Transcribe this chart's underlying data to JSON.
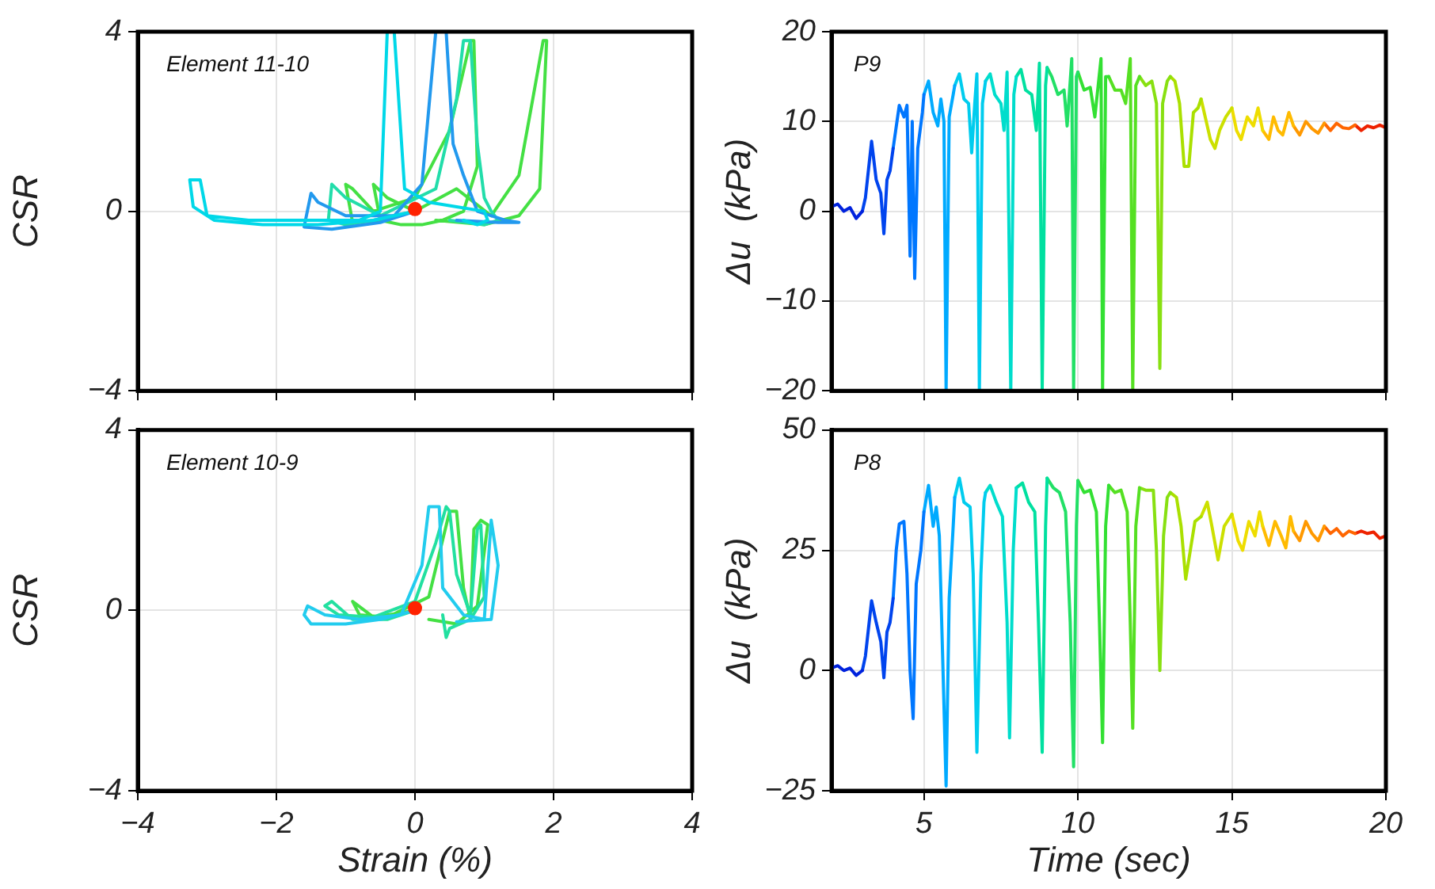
{
  "chart_data": [
    {
      "type": "line",
      "ylabel": "CSR",
      "annotations": [
        "Element 11-10"
      ],
      "xlim": [
        -4,
        4
      ],
      "xticks": [
        -4,
        -2,
        0,
        2,
        4
      ],
      "ylim": [
        -4,
        4
      ],
      "yticks": [
        -4,
        0,
        4
      ],
      "grid": true,
      "tick_labels": "y",
      "legend": false,
      "series": [
        {
          "color": "#00d8e8",
          "x": [
            0,
            -0.6,
            -1.4,
            -2.2,
            -2.9,
            -3.2,
            -3.25,
            -3.1,
            -3.0,
            -2.4,
            -1.6,
            -0.8,
            -0.5,
            -0.4,
            -0.3,
            -0.15,
            0.2,
            0.6,
            1.0,
            1.05,
            0.9,
            0.7
          ],
          "values": [
            0,
            -0.2,
            -0.3,
            -0.3,
            -0.2,
            0.1,
            0.7,
            0.7,
            -0.1,
            -0.2,
            -0.2,
            -0.2,
            0,
            4,
            4,
            0.5,
            0.2,
            0.1,
            0,
            -0.2,
            -0.3,
            -0.2
          ]
        },
        {
          "color": "#2299ee",
          "x": [
            0,
            -0.5,
            -1.2,
            -1.6,
            -1.5,
            -1.4,
            -1.0,
            -0.3,
            0.1,
            0.3,
            0.45,
            0.55,
            0.7,
            0.9,
            1.3,
            1.5,
            1.2,
            0.6
          ],
          "values": [
            0,
            -0.25,
            -0.4,
            -0.35,
            0.4,
            0.2,
            -0.1,
            -0.1,
            0.6,
            4,
            4,
            1.5,
            0.8,
            0,
            -0.2,
            -0.25,
            -0.25,
            -0.2
          ]
        },
        {
          "color": "#22ddaa",
          "x": [
            0,
            -0.6,
            -1.0,
            -1.25,
            -1.2,
            -1.0,
            -0.5,
            0.3,
            0.6,
            0.7,
            0.8,
            0.9,
            1.0,
            1.1,
            1.2,
            1.0,
            0.5
          ],
          "values": [
            0,
            -0.2,
            -0.3,
            -0.2,
            0.6,
            0.3,
            -0.1,
            0.5,
            2.5,
            3.8,
            3.8,
            1.5,
            0.3,
            0,
            -0.2,
            -0.3,
            -0.2
          ]
        },
        {
          "color": "#44e044",
          "x": [
            0,
            -0.5,
            -0.9,
            -1.0,
            -0.9,
            -0.6,
            0,
            0.5,
            0.8,
            0.85,
            0.9,
            0.7,
            0.4,
            0.1,
            -0.2,
            -0.5,
            -0.6,
            -0.4,
            0,
            0.6,
            1.1,
            1.5,
            1.7,
            1.85,
            1.9,
            1.8,
            1.5,
            1.0,
            0.3
          ],
          "values": [
            0,
            -0.2,
            -0.25,
            0.6,
            0.5,
            0,
            0.3,
            1.8,
            3.8,
            3.8,
            1,
            0,
            -0.2,
            -0.3,
            -0.3,
            -0.2,
            0.6,
            0.3,
            0,
            0.5,
            -0.1,
            0.8,
            2.5,
            3.8,
            3.8,
            0.5,
            -0.1,
            -0.3,
            -0.2
          ]
        },
        {
          "type": "scatter",
          "marker": "circle",
          "color": "#ff2200",
          "x": [
            0
          ],
          "values": [
            0.05
          ]
        }
      ]
    },
    {
      "type": "line",
      "ylabel": "Δu  (kPa)",
      "annotations": [
        "P9"
      ],
      "xlim": [
        2,
        20
      ],
      "xticks": [
        5,
        10,
        15,
        20
      ],
      "ylim": [
        -20,
        20
      ],
      "yticks": [
        -20,
        -10,
        0,
        10,
        20
      ],
      "grid": true,
      "tick_labels": "y",
      "legend": false,
      "series": [
        {
          "color": "#0022dd",
          "x": [
            2,
            2.2,
            2.4,
            2.6,
            2.8,
            3.0
          ],
          "values": [
            0.5,
            0.8,
            0,
            0.4,
            -0.8,
            0
          ]
        },
        {
          "color": "#0044ee",
          "x": [
            3.0,
            3.1,
            3.3,
            3.45,
            3.6,
            3.7,
            3.8,
            3.9,
            4.0
          ],
          "values": [
            0,
            1.5,
            7.8,
            3.5,
            2,
            -2.5,
            3.5,
            4.5,
            7
          ]
        },
        {
          "color": "#0077ff",
          "x": [
            4.0,
            4.2,
            4.35,
            4.45,
            4.55,
            4.62,
            4.7,
            4.8,
            4.95,
            5.0
          ],
          "values": [
            7,
            11.8,
            10.5,
            11.8,
            -5,
            10,
            -7.5,
            7,
            11,
            13
          ]
        },
        {
          "color": "#00aaff",
          "x": [
            5.0,
            5.15,
            5.3,
            5.45,
            5.55,
            5.65,
            5.72,
            5.82,
            5.95,
            6.0
          ],
          "values": [
            13,
            14.5,
            11,
            9.5,
            12.5,
            10,
            -20,
            10.5,
            13,
            14
          ]
        },
        {
          "color": "#00ccee",
          "x": [
            6.0,
            6.15,
            6.3,
            6.45,
            6.55,
            6.65,
            6.72,
            6.8,
            6.9,
            7.0
          ],
          "values": [
            14,
            15.3,
            12.5,
            12,
            6.5,
            12,
            15.3,
            -20,
            12,
            14.5
          ]
        },
        {
          "color": "#00ddcc",
          "x": [
            7.0,
            7.15,
            7.3,
            7.5,
            7.6,
            7.7,
            7.82,
            7.92,
            8.0
          ],
          "values": [
            14.5,
            15.3,
            13,
            12,
            9,
            15.5,
            -20,
            13,
            15
          ]
        },
        {
          "color": "#00e0a0",
          "x": [
            8.0,
            8.15,
            8.3,
            8.5,
            8.65,
            8.75,
            8.84,
            8.95,
            9.0
          ],
          "values": [
            15,
            15.8,
            13.5,
            13,
            9,
            16.5,
            -20,
            14,
            16
          ]
        },
        {
          "color": "#22e066",
          "x": [
            9.0,
            9.15,
            9.35,
            9.55,
            9.65,
            9.8,
            9.86,
            9.95,
            10.0
          ],
          "values": [
            16,
            15,
            13,
            13.5,
            9.5,
            17,
            -20,
            15,
            15.5
          ]
        },
        {
          "color": "#33e033",
          "x": [
            10.0,
            10.2,
            10.4,
            10.55,
            10.75,
            10.8,
            10.9,
            11.0
          ],
          "values": [
            15.5,
            13.5,
            13.8,
            10.5,
            17,
            -20,
            15,
            15
          ]
        },
        {
          "color": "#55e022",
          "x": [
            11.0,
            11.2,
            11.4,
            11.55,
            11.7,
            11.78,
            11.88,
            12.0
          ],
          "values": [
            15,
            13.5,
            13.5,
            12,
            17,
            -20,
            14,
            15
          ]
        },
        {
          "color": "#88e011",
          "x": [
            12.0,
            12.2,
            12.4,
            12.55,
            12.66,
            12.75,
            12.9,
            13.0
          ],
          "values": [
            15,
            14,
            14.5,
            12,
            -17.5,
            12,
            14.5,
            15
          ]
        },
        {
          "color": "#aae000",
          "x": [
            13.0,
            13.15,
            13.3,
            13.45,
            13.6,
            13.75,
            13.9,
            14.0
          ],
          "values": [
            15,
            14.5,
            12,
            5,
            5,
            11,
            11.5,
            12.5
          ]
        },
        {
          "color": "#cce000",
          "x": [
            14.0,
            14.1,
            14.3,
            14.45,
            14.6,
            14.8,
            15.0
          ],
          "values": [
            12.5,
            11,
            8,
            7,
            9,
            10.5,
            11.5
          ]
        },
        {
          "color": "#eedd00",
          "x": [
            15.0,
            15.15,
            15.3,
            15.5,
            15.7,
            15.85,
            16.0
          ],
          "values": [
            11.5,
            9,
            8,
            10.5,
            9.5,
            11.5,
            9
          ]
        },
        {
          "color": "#ffbb00",
          "x": [
            16.0,
            16.2,
            16.35,
            16.5,
            16.65,
            16.85,
            17.0
          ],
          "values": [
            9,
            8,
            10.5,
            9,
            8.5,
            11,
            9.5
          ]
        },
        {
          "color": "#ff9900",
          "x": [
            17.0,
            17.2,
            17.4,
            17.6,
            17.8,
            18.0
          ],
          "values": [
            9.5,
            8.5,
            10,
            9.2,
            8.7,
            9.8
          ]
        },
        {
          "color": "#ff6600",
          "x": [
            18.0,
            18.2,
            18.4,
            18.6,
            18.8,
            19.0
          ],
          "values": [
            9.8,
            9,
            9.8,
            9.3,
            9.2,
            9.6
          ]
        },
        {
          "color": "#ee2200",
          "x": [
            19.0,
            19.2,
            19.4,
            19.6,
            19.8,
            20.0
          ],
          "values": [
            9.6,
            9,
            9.5,
            9.3,
            9.6,
            9.3
          ]
        }
      ]
    },
    {
      "type": "line",
      "xlabel": "Strain (%)",
      "ylabel": "CSR",
      "annotations": [
        "Element 10-9"
      ],
      "xlim": [
        -4,
        4
      ],
      "xticks": [
        -4,
        -2,
        0,
        2,
        4
      ],
      "ylim": [
        -4,
        4
      ],
      "yticks": [
        -4,
        0,
        4
      ],
      "grid": true,
      "legend": false,
      "series": [
        {
          "color": "#22ccee",
          "x": [
            0,
            -0.5,
            -1.0,
            -1.5,
            -1.6,
            -1.55,
            -1.3,
            -0.8,
            -0.2,
            0.1,
            0.2,
            0.35,
            0.4,
            0.7,
            1.0,
            1.1,
            1.15,
            1.2,
            1.1,
            0.6
          ],
          "values": [
            0,
            -0.2,
            -0.3,
            -0.3,
            -0.1,
            0.1,
            -0.1,
            -0.2,
            -0.1,
            1.0,
            2.3,
            2.3,
            0.5,
            -0.1,
            -0.2,
            2.0,
            1.5,
            1.0,
            -0.2,
            -0.25
          ]
        },
        {
          "color": "#22e0a0",
          "x": [
            0,
            -0.4,
            -0.9,
            -1.2,
            -1.3,
            -1.1,
            -0.6,
            0,
            0.3,
            0.45,
            0.5,
            0.6,
            0.8,
            0.9,
            0.95,
            1.0,
            0.8,
            0.5,
            0.45,
            0.4
          ],
          "values": [
            0,
            -0.2,
            -0.2,
            0.2,
            0.1,
            -0.1,
            -0.15,
            0.2,
            1.5,
            2.3,
            2.2,
            0.8,
            -0.1,
            1.8,
            1.9,
            0.3,
            -0.2,
            -0.4,
            -0.6,
            -0.1
          ]
        },
        {
          "color": "#44e044",
          "x": [
            0,
            -0.6,
            -0.9,
            -0.8,
            -0.4,
            0.2,
            0.5,
            0.6,
            0.7,
            0.8,
            0.85,
            0.95,
            1.05,
            0.9,
            0.6,
            0.2
          ],
          "values": [
            0,
            -0.15,
            0.2,
            -0.1,
            -0.15,
            0.3,
            2.2,
            2.2,
            0.5,
            -0.2,
            1.8,
            2.0,
            1.9,
            0.1,
            -0.3,
            -0.2
          ]
        },
        {
          "type": "scatter",
          "marker": "circle",
          "color": "#ff2200",
          "x": [
            0
          ],
          "values": [
            0.05
          ]
        }
      ]
    },
    {
      "type": "line",
      "xlabel": "Time (sec)",
      "ylabel": "Δu  (kPa)",
      "annotations": [
        "P8"
      ],
      "xlim": [
        2,
        20
      ],
      "xticks": [
        5,
        10,
        15,
        20
      ],
      "ylim": [
        -25,
        50
      ],
      "yticks": [
        -25,
        0,
        25,
        50
      ],
      "grid": true,
      "legend": false,
      "series": [
        {
          "color": "#0022dd",
          "x": [
            2,
            2.2,
            2.4,
            2.6,
            2.8,
            3.0
          ],
          "values": [
            0.5,
            1,
            0,
            0.5,
            -1,
            0
          ]
        },
        {
          "color": "#0044ee",
          "x": [
            3.0,
            3.1,
            3.3,
            3.45,
            3.6,
            3.7,
            3.8,
            3.9,
            4.0
          ],
          "values": [
            0,
            3,
            14.5,
            10,
            6,
            -1.5,
            8,
            10,
            15
          ]
        },
        {
          "color": "#0077ff",
          "x": [
            4.0,
            4.1,
            4.2,
            4.35,
            4.45,
            4.55,
            4.65,
            4.75,
            4.9,
            5.0
          ],
          "values": [
            15,
            25,
            30.5,
            31,
            20,
            0,
            -10,
            18,
            25,
            33
          ]
        },
        {
          "color": "#00aaff",
          "x": [
            5.0,
            5.15,
            5.3,
            5.4,
            5.5,
            5.62,
            5.72,
            5.82,
            5.95,
            6.0
          ],
          "values": [
            33,
            38.5,
            30,
            34,
            28,
            0,
            -24,
            15,
            30,
            36
          ]
        },
        {
          "color": "#00ccee",
          "x": [
            6.0,
            6.15,
            6.3,
            6.5,
            6.6,
            6.72,
            6.85,
            6.95,
            7.0
          ],
          "values": [
            36,
            40,
            35,
            34,
            20,
            -17,
            20,
            35,
            37
          ]
        },
        {
          "color": "#00ddcc",
          "x": [
            7.0,
            7.15,
            7.35,
            7.55,
            7.7,
            7.78,
            7.9,
            8.0
          ],
          "values": [
            37,
            38.5,
            35,
            32,
            10,
            -14,
            25,
            38
          ]
        },
        {
          "color": "#00e0a0",
          "x": [
            8.0,
            8.2,
            8.4,
            8.6,
            8.72,
            8.84,
            8.95,
            9.0
          ],
          "values": [
            38,
            39,
            35,
            33,
            10,
            -17,
            30,
            40
          ]
        },
        {
          "color": "#22e066",
          "x": [
            9.0,
            9.2,
            9.4,
            9.6,
            9.75,
            9.86,
            9.95,
            10.0
          ],
          "values": [
            40,
            38,
            37,
            33,
            10,
            -20,
            30,
            39.5
          ]
        },
        {
          "color": "#33e033",
          "x": [
            10.0,
            10.2,
            10.4,
            10.6,
            10.7,
            10.8,
            10.9,
            11.0
          ],
          "values": [
            39.5,
            37,
            37.5,
            33,
            10,
            -15,
            30,
            38.5
          ]
        },
        {
          "color": "#55e022",
          "x": [
            11.0,
            11.2,
            11.4,
            11.6,
            11.7,
            11.78,
            11.88,
            12.0
          ],
          "values": [
            38.5,
            37,
            37.5,
            33,
            10,
            -12,
            30,
            38
          ]
        },
        {
          "color": "#88e011",
          "x": [
            12.0,
            12.2,
            12.45,
            12.55,
            12.66,
            12.78,
            12.9,
            13.0
          ],
          "values": [
            38,
            37.5,
            37.5,
            25,
            0,
            28,
            36,
            37
          ]
        },
        {
          "color": "#aae000",
          "x": [
            13.0,
            13.2,
            13.35,
            13.5,
            13.65,
            13.8,
            14.0
          ],
          "values": [
            37,
            36,
            30,
            19,
            25,
            31,
            32
          ]
        },
        {
          "color": "#cce000",
          "x": [
            14.0,
            14.2,
            14.35,
            14.55,
            14.75,
            15.0
          ],
          "values": [
            32,
            35,
            30,
            23,
            30,
            32.5
          ]
        },
        {
          "color": "#eedd00",
          "x": [
            15.0,
            15.2,
            15.35,
            15.55,
            15.75,
            15.9,
            16.0
          ],
          "values": [
            32.5,
            27,
            25,
            31,
            28,
            33,
            30
          ]
        },
        {
          "color": "#ffbb00",
          "x": [
            16.0,
            16.2,
            16.4,
            16.6,
            16.75,
            16.9,
            17.0
          ],
          "values": [
            30,
            26,
            31,
            28,
            25.5,
            32,
            29
          ]
        },
        {
          "color": "#ff9900",
          "x": [
            17.0,
            17.2,
            17.4,
            17.6,
            17.8,
            18.0
          ],
          "values": [
            29,
            27,
            31,
            28.5,
            27,
            30
          ]
        },
        {
          "color": "#ff6600",
          "x": [
            18.0,
            18.2,
            18.4,
            18.6,
            18.8,
            19.0
          ],
          "values": [
            30,
            28.5,
            29.5,
            28,
            29,
            28.5
          ]
        },
        {
          "color": "#ee2200",
          "x": [
            19.0,
            19.2,
            19.4,
            19.6,
            19.8,
            20.0
          ],
          "values": [
            28.5,
            29,
            28.5,
            28.8,
            27.5,
            28
          ]
        }
      ]
    }
  ]
}
